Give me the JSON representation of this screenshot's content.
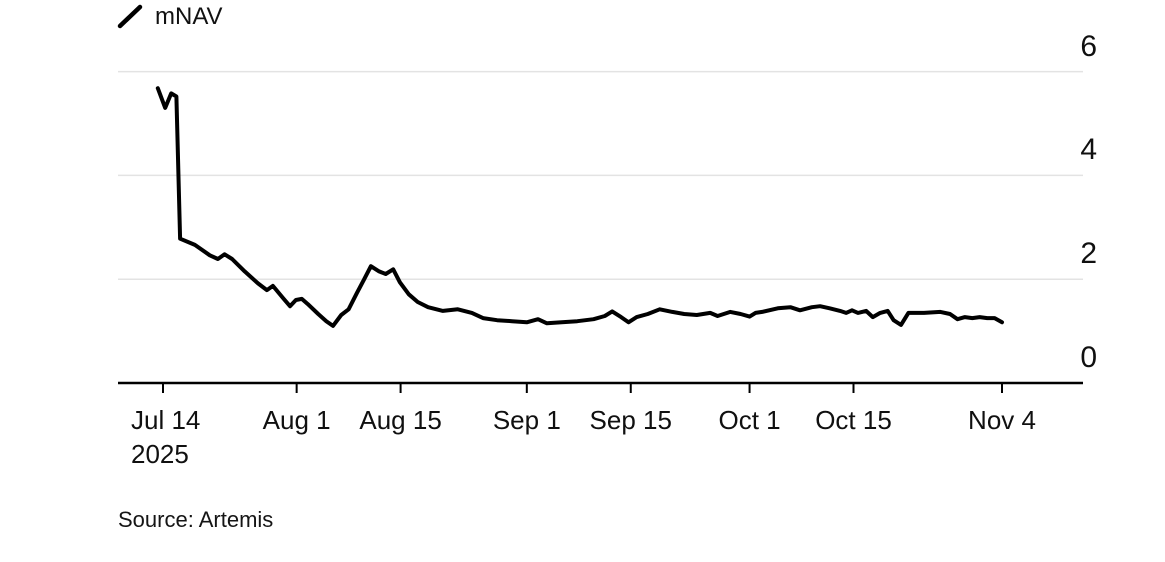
{
  "legend": {
    "label": "mNAV"
  },
  "source": {
    "text": "Source: Artemis"
  },
  "colors": {
    "line": "#000000",
    "grid": "#e3e3e3",
    "axis": "#000000",
    "text": "#111111",
    "background": "#ffffff"
  },
  "chart_data": {
    "type": "line",
    "title": "",
    "xlabel": "",
    "ylabel": "",
    "legend_position": "top-left",
    "grid": "horizontal",
    "x_axis": {
      "unit": "days since Jul 14 2025",
      "range_days": [
        -1.5,
        114.5
      ],
      "ticks": [
        {
          "label": "Jul 14",
          "sub": "2025",
          "day": 0
        },
        {
          "label": "Aug 1",
          "day": 18
        },
        {
          "label": "Aug 15",
          "day": 32
        },
        {
          "label": "Sep 1",
          "day": 49
        },
        {
          "label": "Sep 15",
          "day": 63
        },
        {
          "label": "Oct 1",
          "day": 79
        },
        {
          "label": "Oct 15",
          "day": 93
        },
        {
          "label": "Nov 4",
          "day": 113
        }
      ]
    },
    "y_axis": {
      "side": "right",
      "range": [
        0,
        6.3
      ],
      "ticks": [
        {
          "label": "6",
          "value": 6
        },
        {
          "label": "4",
          "value": 4
        },
        {
          "label": "2",
          "value": 2
        },
        {
          "label": "0",
          "value": 0
        }
      ]
    },
    "series": [
      {
        "name": "mNAV",
        "color": "#000000",
        "points": [
          [
            "Jul 13",
            -0.7,
            5.68
          ],
          [
            "Jul 14",
            0.3,
            5.3
          ],
          [
            "Jul 15",
            1.1,
            5.58
          ],
          [
            "Jul 16",
            1.8,
            5.52
          ],
          [
            "Jul 16",
            2.3,
            2.78
          ],
          [
            "Jul 18",
            4.3,
            2.66
          ],
          [
            "Jul 20",
            6.3,
            2.46
          ],
          [
            "Jul 21",
            7.4,
            2.39
          ],
          [
            "Jul 22",
            8.3,
            2.48
          ],
          [
            "Jul 23",
            9.3,
            2.39
          ],
          [
            "Jul 25",
            11.0,
            2.15
          ],
          [
            "Jul 27",
            12.8,
            1.92
          ],
          [
            "Jul 28",
            14.0,
            1.79
          ],
          [
            "Jul 29",
            14.8,
            1.87
          ],
          [
            "Jul 30",
            16.2,
            1.63
          ],
          [
            "Jul 31",
            17.1,
            1.48
          ],
          [
            "Aug 1",
            17.9,
            1.6
          ],
          [
            "Aug 2",
            18.7,
            1.62
          ],
          [
            "Aug 3",
            19.5,
            1.52
          ],
          [
            "Aug 4",
            20.9,
            1.33
          ],
          [
            "Aug 5",
            22.0,
            1.19
          ],
          [
            "Aug 6",
            22.9,
            1.1
          ],
          [
            "Aug 7",
            24.0,
            1.31
          ],
          [
            "Aug 8",
            25.0,
            1.42
          ],
          [
            "Aug 9",
            26.1,
            1.73
          ],
          [
            "Aug 10",
            27.1,
            2.0
          ],
          [
            "Aug 11",
            28.0,
            2.25
          ],
          [
            "Aug 12",
            29.1,
            2.15
          ],
          [
            "Aug 13",
            30.0,
            2.1
          ],
          [
            "Aug 14",
            31.0,
            2.19
          ],
          [
            "Aug 15",
            31.9,
            1.94
          ],
          [
            "Aug 16",
            33.1,
            1.71
          ],
          [
            "Aug 17",
            34.3,
            1.56
          ],
          [
            "Aug 19",
            35.7,
            1.46
          ],
          [
            "Aug 21",
            37.7,
            1.39
          ],
          [
            "Aug 23",
            39.7,
            1.42
          ],
          [
            "Aug 25",
            41.6,
            1.35
          ],
          [
            "Aug 26",
            43.1,
            1.25
          ],
          [
            "Aug 28",
            45.0,
            1.21
          ],
          [
            "Aug 30",
            47.0,
            1.19
          ],
          [
            "Sep 1",
            49.0,
            1.17
          ],
          [
            "Sep 2",
            50.5,
            1.23
          ],
          [
            "Sep 4",
            51.7,
            1.15
          ],
          [
            "Sep 6",
            53.7,
            1.17
          ],
          [
            "Sep 8",
            55.8,
            1.19
          ],
          [
            "Sep 10",
            58.0,
            1.23
          ],
          [
            "Sep 11",
            59.5,
            1.29
          ],
          [
            "Sep 12",
            60.5,
            1.38
          ],
          [
            "Sep 13",
            61.7,
            1.27
          ],
          [
            "Sep 14",
            62.7,
            1.17
          ],
          [
            "Sep 15",
            63.8,
            1.27
          ],
          [
            "Sep 17",
            65.3,
            1.33
          ],
          [
            "Sep 19",
            66.9,
            1.42
          ],
          [
            "Sep 20",
            68.6,
            1.37
          ],
          [
            "Sep 22",
            70.2,
            1.33
          ],
          [
            "Sep 24",
            71.9,
            1.31
          ],
          [
            "Sep 26",
            73.7,
            1.35
          ],
          [
            "Sep 27",
            74.7,
            1.29
          ],
          [
            "Sep 29",
            76.4,
            1.37
          ],
          [
            "Sep 30",
            77.8,
            1.33
          ],
          [
            "Oct 1",
            79.0,
            1.28
          ],
          [
            "Oct 2",
            79.8,
            1.35
          ],
          [
            "Oct 3",
            80.7,
            1.37
          ],
          [
            "Oct 5",
            82.8,
            1.44
          ],
          [
            "Oct 7",
            84.5,
            1.46
          ],
          [
            "Oct 8",
            85.8,
            1.4
          ],
          [
            "Oct 9",
            87.4,
            1.46
          ],
          [
            "Oct 10",
            88.5,
            1.48
          ],
          [
            "Oct 12",
            89.8,
            1.44
          ],
          [
            "Oct 13",
            91.2,
            1.39
          ],
          [
            "Oct 14",
            92.0,
            1.35
          ],
          [
            "Oct 15",
            92.8,
            1.4
          ],
          [
            "Oct 16",
            93.6,
            1.35
          ],
          [
            "Oct 17",
            94.7,
            1.39
          ],
          [
            "Oct 18",
            95.6,
            1.27
          ],
          [
            "Oct 19",
            96.6,
            1.35
          ],
          [
            "Oct 20",
            97.6,
            1.39
          ],
          [
            "Oct 21",
            98.4,
            1.21
          ],
          [
            "Oct 22",
            99.4,
            1.12
          ],
          [
            "Oct 23",
            100.4,
            1.35
          ],
          [
            "Oct 25",
            102.5,
            1.35
          ],
          [
            "Oct 27",
            104.7,
            1.37
          ],
          [
            "Oct 28",
            106.0,
            1.33
          ],
          [
            "Oct 29",
            107.0,
            1.23
          ],
          [
            "Oct 30",
            108.0,
            1.27
          ],
          [
            "Oct 31",
            109.0,
            1.25
          ],
          [
            "Nov 1",
            110.0,
            1.27
          ],
          [
            "Nov 2",
            111.0,
            1.25
          ],
          [
            "Nov 3",
            112.0,
            1.25
          ],
          [
            "Nov 4",
            113.0,
            1.17
          ]
        ]
      }
    ]
  }
}
